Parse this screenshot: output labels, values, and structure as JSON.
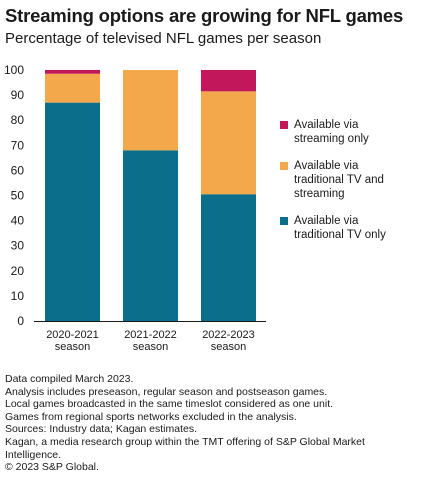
{
  "header": {
    "title": "Streaming options are growing for NFL games",
    "subtitle": "Percentage of televised NFL games per season"
  },
  "chart_data": {
    "type": "bar",
    "stacked": true,
    "categories": [
      [
        "2020-2021",
        "season"
      ],
      [
        "2021-2022",
        "season"
      ],
      [
        "2022-2023",
        "season"
      ]
    ],
    "series": [
      {
        "name": "Available via traditional TV only",
        "color": "#0b6e8a",
        "values": [
          87,
          68,
          50.5
        ]
      },
      {
        "name": "Available via traditional TV and streaming",
        "color": "#f2a84b",
        "values": [
          11.5,
          32,
          41
        ]
      },
      {
        "name": "Available via streaming only",
        "color": "#c2185b",
        "values": [
          1.5,
          0,
          8.5
        ]
      }
    ],
    "ylim": [
      0,
      100
    ],
    "yticks": [
      0,
      10,
      20,
      30,
      40,
      50,
      60,
      70,
      80,
      90,
      100
    ],
    "grid": false,
    "legend_position": "right"
  },
  "legend": {
    "items": [
      {
        "label_lines": [
          "Available via",
          "streaming only"
        ],
        "color": "#c2185b"
      },
      {
        "label_lines": [
          "Available via",
          "traditional TV and",
          "streaming"
        ],
        "color": "#f2a84b"
      },
      {
        "label_lines": [
          "Available via",
          "traditional TV only"
        ],
        "color": "#0b6e8a"
      }
    ]
  },
  "footnotes": [
    "Data compiled March 2023.",
    "Analysis includes preseason, regular season and postseason games.",
    "Local games broadcasted in the same timeslot considered as one unit.",
    "Games from regional sports networks excluded in the analysis.",
    "Sources: Industry data; Kagan estimates.",
    "Kagan, a media research group within the TMT offering of S&P Global Market",
    "Intelligence.",
    "© 2023 S&P Global."
  ]
}
